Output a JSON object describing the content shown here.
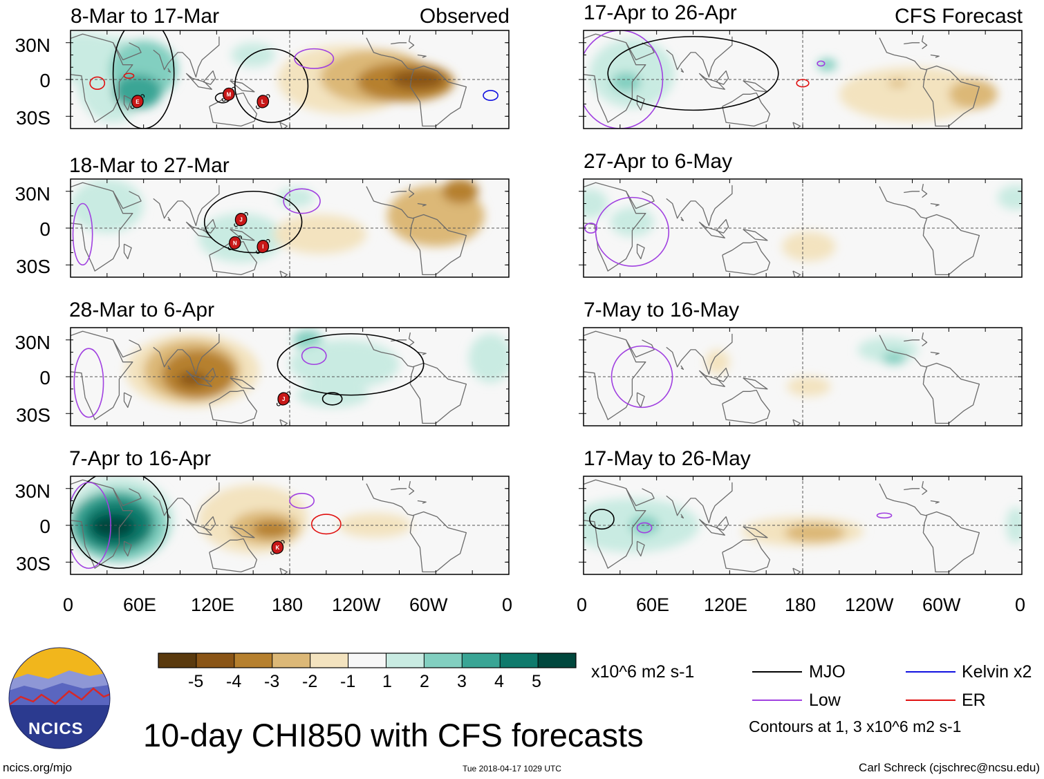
{
  "header": {
    "observed_label": "Observed",
    "forecast_label": "CFS Forecast"
  },
  "panels_observed": [
    {
      "title": "8-Mar to 17-Mar"
    },
    {
      "title": "18-Mar to 27-Mar"
    },
    {
      "title": "28-Mar to 6-Apr"
    },
    {
      "title": "7-Apr to 16-Apr"
    }
  ],
  "panels_forecast": [
    {
      "title": "17-Apr to 26-Apr"
    },
    {
      "title": "27-Apr to 6-May"
    },
    {
      "title": "7-May to 16-May"
    },
    {
      "title": "17-May to 26-May"
    }
  ],
  "axes": {
    "lat_labels": [
      "30N",
      "0",
      "30S"
    ],
    "lon_labels": [
      "0",
      "60E",
      "120E",
      "180",
      "120W",
      "60W",
      "0"
    ]
  },
  "colorbar": {
    "ticks": [
      "-5",
      "-4",
      "-3",
      "-2",
      "-1",
      "1",
      "2",
      "3",
      "4",
      "5"
    ],
    "colors": [
      "#5a3a0e",
      "#8a5516",
      "#b6802e",
      "#dcb877",
      "#f3e3bf",
      "#f7f7f7",
      "#c9ebe2",
      "#82cfc0",
      "#3aa595",
      "#0f7a6c",
      "#00473d"
    ],
    "units": "x10^6 m2 s-1"
  },
  "legend": {
    "items": [
      {
        "label": "MJO",
        "color": "#000000"
      },
      {
        "label": "Kelvin x2",
        "color": "#1010e0"
      },
      {
        "label": "Low",
        "color": "#a040e0"
      },
      {
        "label": "ER",
        "color": "#e01010"
      }
    ],
    "contour_note": "Contours at 1, 3 x10^6 m2 s-1"
  },
  "logo": {
    "text": "NCICS"
  },
  "footer": {
    "main_title": "10-day CHI850 with CFS forecasts",
    "url": "ncics.org/mjo",
    "timestamp": "Tue 2018-04-17 1029 UTC",
    "author": "Carl Schreck (cjschrec@ncsu.edu)"
  },
  "storm_letters": [
    "E",
    "M",
    "L",
    "J",
    "N",
    "I",
    "J",
    "K"
  ]
}
